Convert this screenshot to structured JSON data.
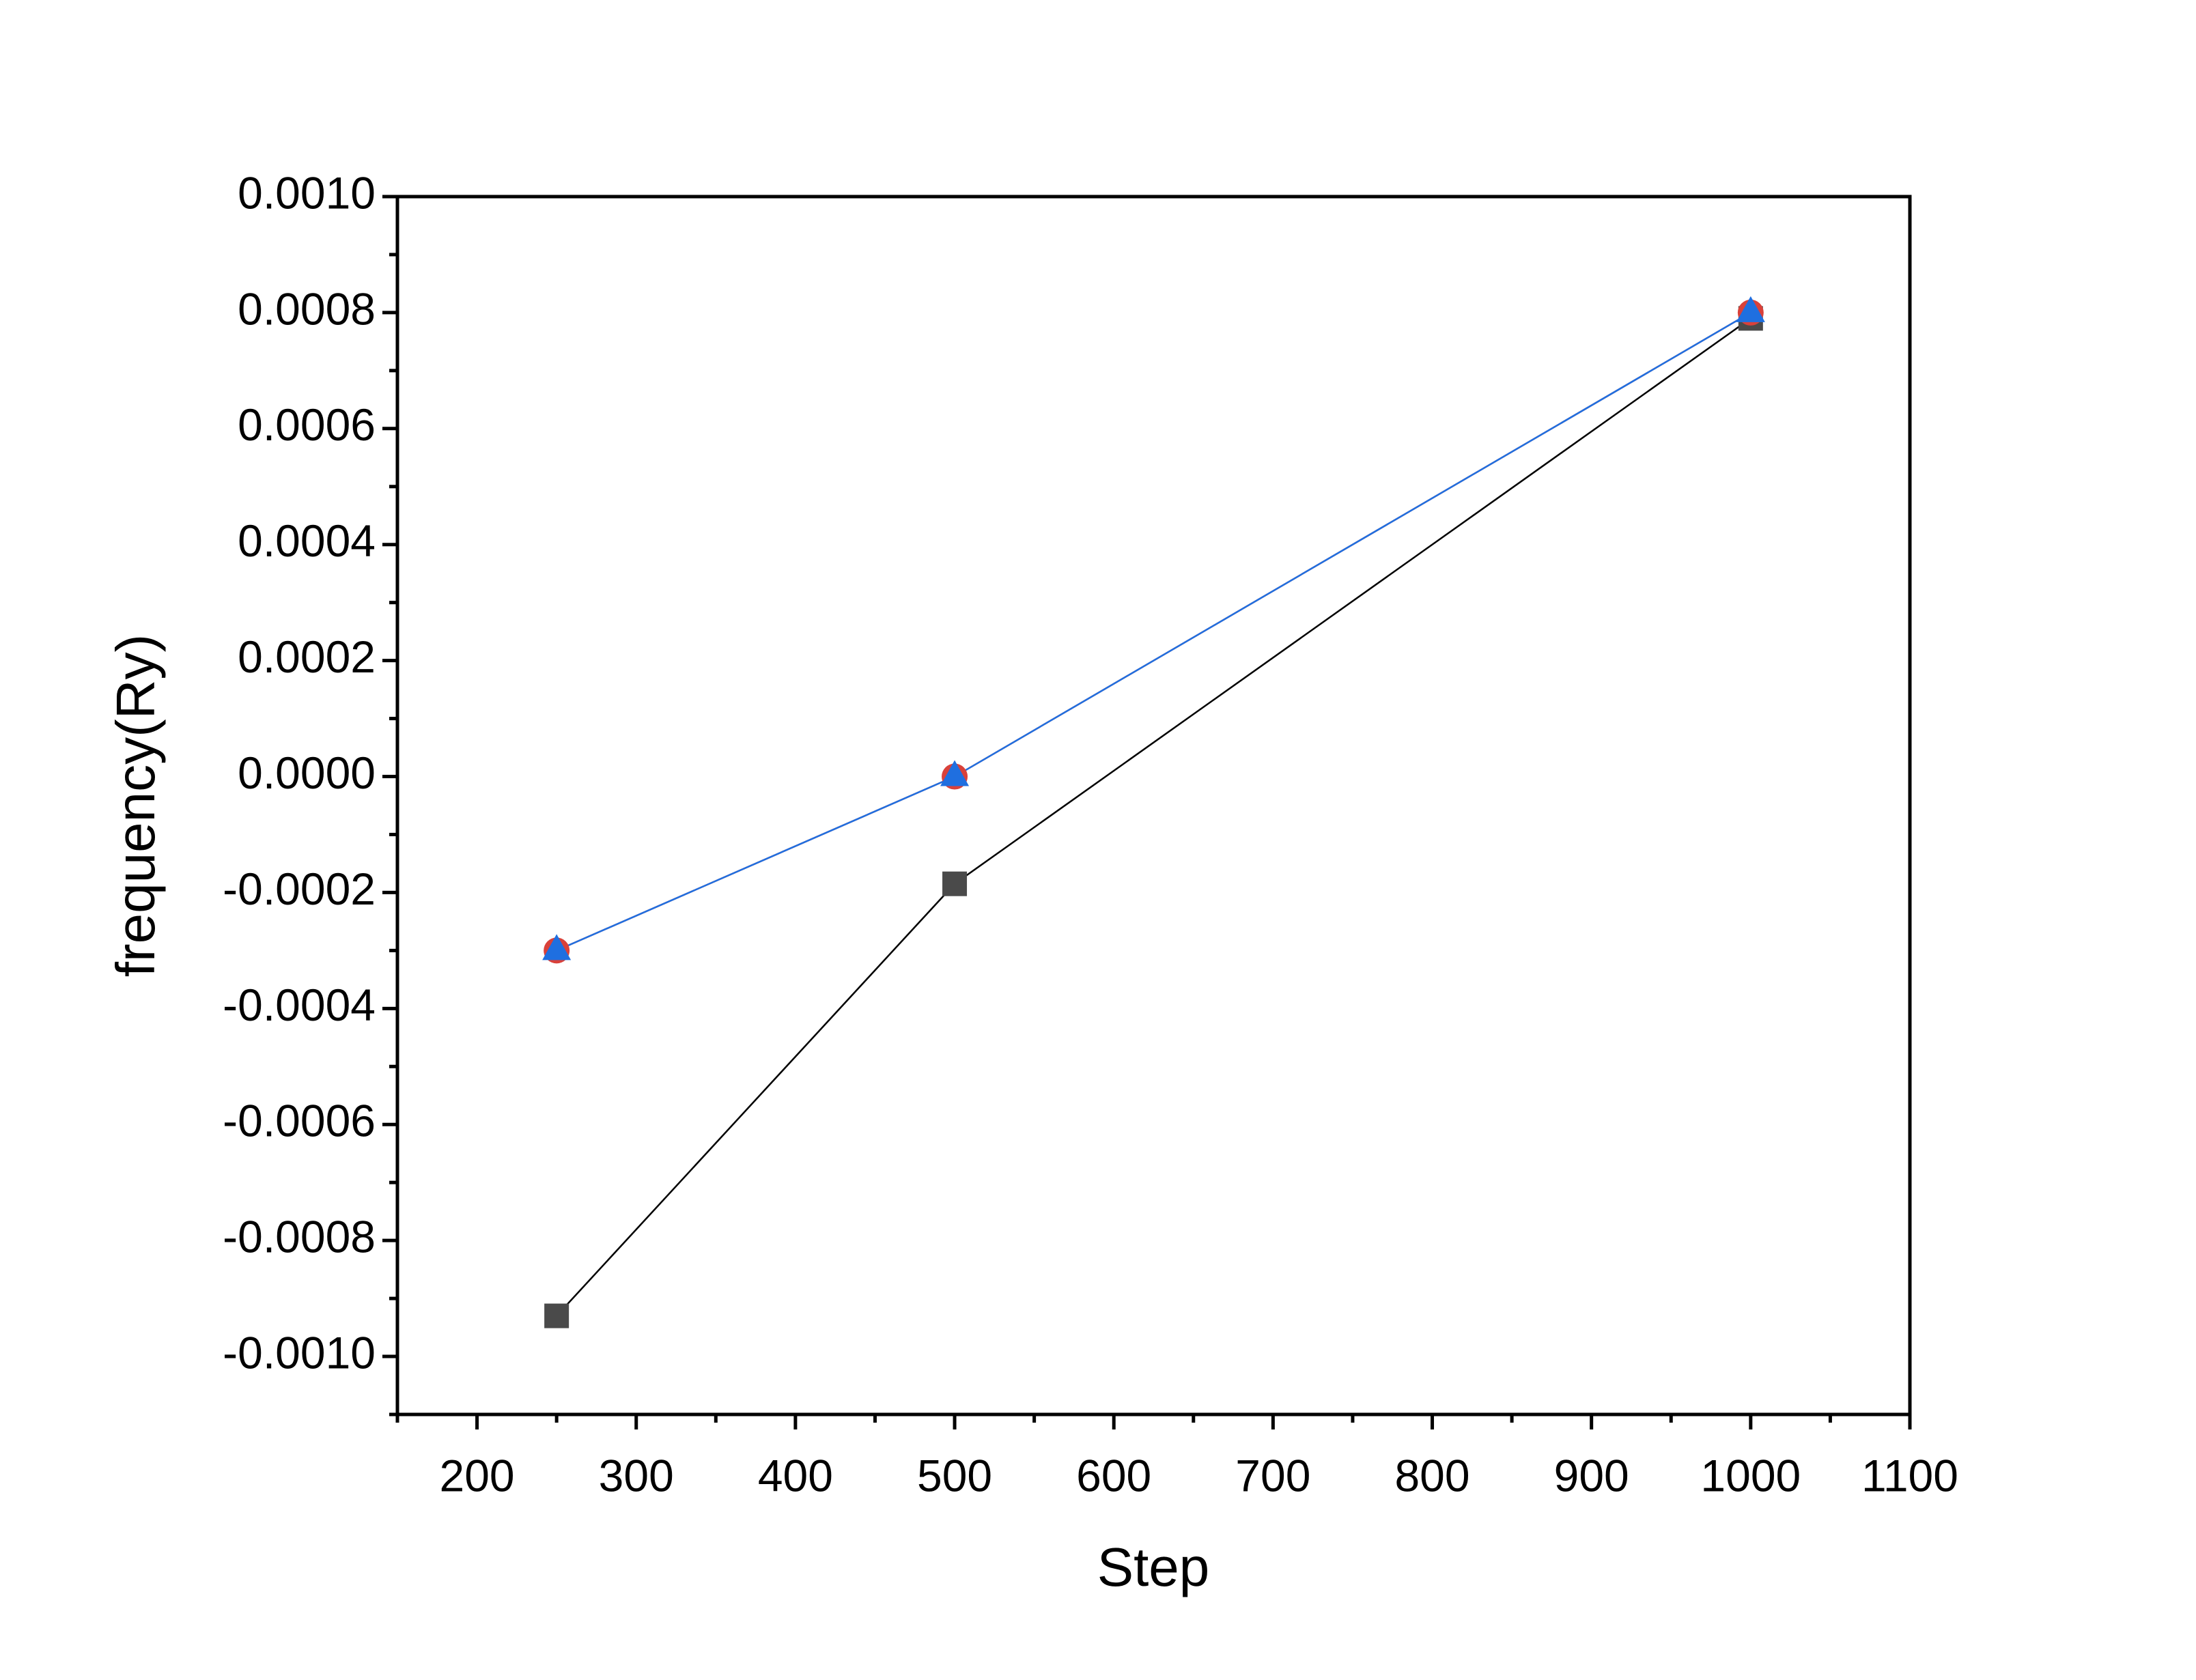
{
  "chart_data": {
    "type": "line",
    "x_label": "Step",
    "y_label": "frequency(Ry)",
    "x": [
      250,
      500,
      1000
    ],
    "series": [
      {
        "color": "#4a4a4a",
        "marker": "square",
        "values": [
          -0.00093,
          -0.000185,
          0.00079
        ]
      },
      {
        "color": "#d9413a",
        "marker": "circle",
        "values": [
          -0.0003,
          0.0,
          0.0008
        ]
      },
      {
        "color": "#1f6fe0",
        "marker": "triangle",
        "values": [
          -0.0003,
          0.0,
          0.0008
        ]
      }
    ],
    "xlim": [
      150,
      1100
    ],
    "xticks": [
      200,
      300,
      400,
      500,
      600,
      700,
      800,
      900,
      1000,
      1100
    ],
    "ylim": [
      -0.0011,
      0.001
    ],
    "yticks": [
      {
        "value": -0.001,
        "label": "-0.0010"
      },
      {
        "value": -0.0008,
        "label": "-0.0008"
      },
      {
        "value": -0.0006,
        "label": "-0.0006"
      },
      {
        "value": -0.0004,
        "label": "-0.0004"
      },
      {
        "value": -0.0002,
        "label": "-0.0002"
      },
      {
        "value": 0,
        "label": "0.0000"
      },
      {
        "value": 0.0002,
        "label": "0.0002"
      },
      {
        "value": 0.0004,
        "label": "0.0004"
      },
      {
        "value": 0.0006,
        "label": "0.0006"
      },
      {
        "value": 0.0008,
        "label": "0.0008"
      },
      {
        "value": 0.001,
        "label": "0.0010"
      }
    ],
    "grid": false
  }
}
